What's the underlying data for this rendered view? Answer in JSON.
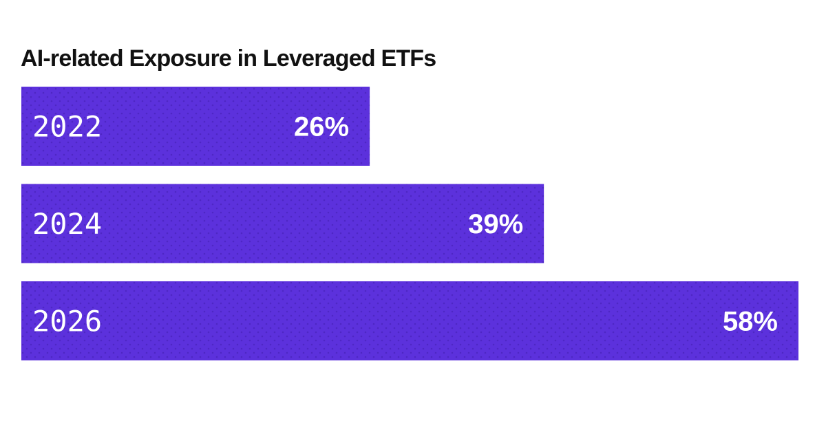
{
  "chart_data": {
    "type": "bar",
    "orientation": "horizontal",
    "title": "AI-related Exposure in Leveraged ETFs",
    "categories": [
      "2022",
      "2024",
      "2026"
    ],
    "values": [
      26,
      39,
      58
    ],
    "value_labels": [
      "26%",
      "39%",
      "58%"
    ],
    "unit": "%",
    "xlim": [
      0,
      58
    ],
    "grid": false,
    "legend": "none",
    "bar_color": "#5C31DC",
    "bar_pattern_color": "#4E27C4",
    "label_color": "#FFFFFF"
  }
}
